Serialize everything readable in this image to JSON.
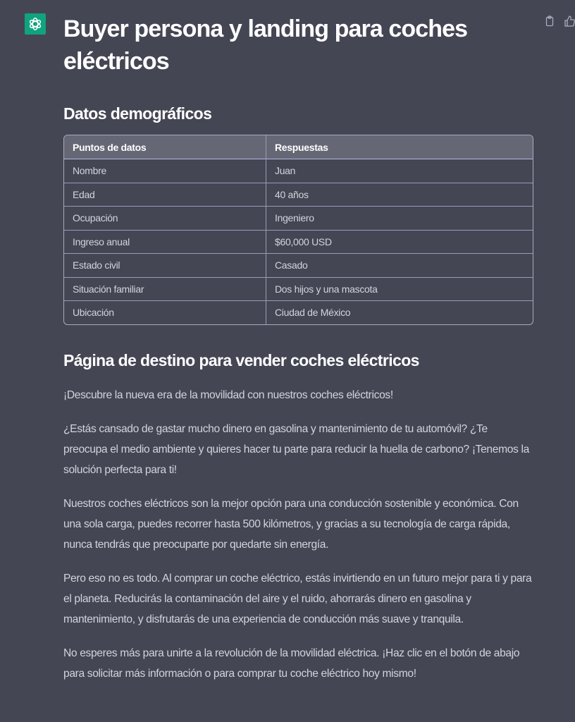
{
  "brand_color": "#10a37f",
  "icons": {
    "avatar": "openai-logo-icon",
    "copy": "clipboard-icon",
    "like": "thumbs-up-icon"
  },
  "title": "Buyer persona y landing para coches eléctricos",
  "demographics": {
    "heading": "Datos demográficos",
    "columns": [
      "Puntos de datos",
      "Respuestas"
    ],
    "rows": [
      [
        "Nombre",
        "Juan"
      ],
      [
        "Edad",
        "40 años"
      ],
      [
        "Ocupación",
        "Ingeniero"
      ],
      [
        "Ingreso anual",
        "$60,000 USD"
      ],
      [
        "Estado civil",
        "Casado"
      ],
      [
        "Situación familiar",
        "Dos hijos y una mascota"
      ],
      [
        "Ubicación",
        "Ciudad de México"
      ]
    ]
  },
  "landing": {
    "heading": "Página de destino para vender coches eléctricos",
    "paragraphs": [
      "¡Descubre la nueva era de la movilidad con nuestros coches eléctricos!",
      "¿Estás cansado de gastar mucho dinero en gasolina y mantenimiento de tu automóvil? ¿Te preocupa el medio ambiente y quieres hacer tu parte para reducir la huella de carbono? ¡Tenemos la solución perfecta para ti!",
      "Nuestros coches eléctricos son la mejor opción para una conducción sostenible y económica. Con una sola carga, puedes recorrer hasta 500 kilómetros, y gracias a su tecnología de carga rápida, nunca tendrás que preocuparte por quedarte sin energía.",
      "Pero eso no es todo. Al comprar un coche eléctrico, estás invirtiendo en un futuro mejor para ti y para el planeta. Reducirás la contaminación del aire y el ruido, ahorrarás dinero en gasolina y mantenimiento, y disfrutarás de una experiencia de conducción más suave y tranquila.",
      "No esperes más para unirte a la revolución de la movilidad eléctrica. ¡Haz clic en el botón de abajo para solicitar más información o para comprar tu coche eléctrico hoy mismo!"
    ]
  }
}
